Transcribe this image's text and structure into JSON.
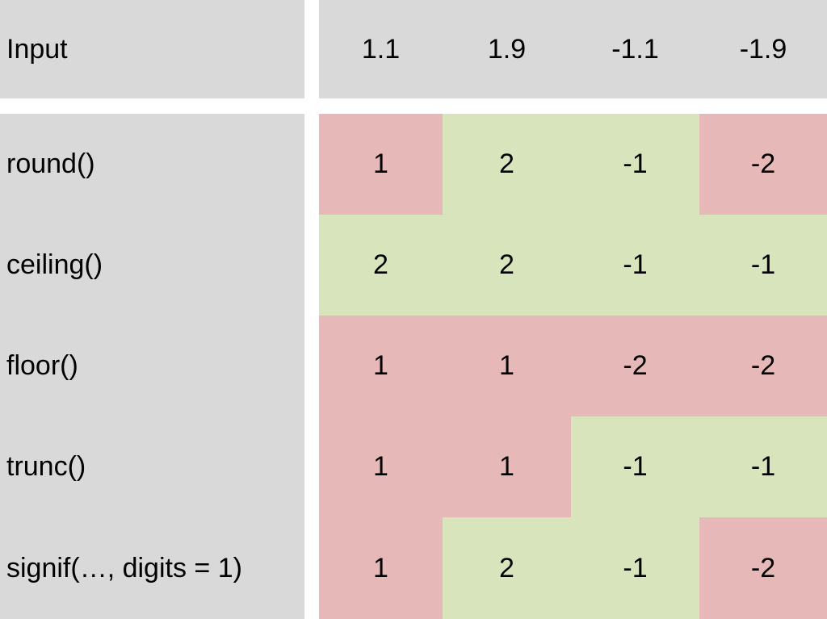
{
  "table": {
    "header": [
      "Input",
      "1.1",
      "1.9",
      "-1.1",
      "-1.9"
    ],
    "rows": [
      [
        "round()",
        "1",
        "2",
        "-1",
        "-2"
      ],
      [
        "ceiling()",
        "2",
        "2",
        "-1",
        "-1"
      ],
      [
        "floor()",
        "1",
        "1",
        "-2",
        "-2"
      ],
      [
        "trunc()",
        "1",
        "1",
        "-1",
        "-1"
      ],
      [
        "signif(…, digits = 1)",
        "1",
        "2",
        "-1",
        "-2"
      ]
    ],
    "header_color": "#d9d9d9",
    "label_color": "#d9d9d9",
    "cell_colors": [
      [
        "#e6b8b7",
        "#d8e4bc",
        "#d8e4bc",
        "#e6b8b7"
      ],
      [
        "#d8e4bc",
        "#d8e4bc",
        "#d8e4bc",
        "#d8e4bc"
      ],
      [
        "#e6b8b7",
        "#e6b8b7",
        "#e6b8b7",
        "#e6b8b7"
      ],
      [
        "#e6b8b7",
        "#e6b8b7",
        "#d8e4bc",
        "#d8e4bc"
      ],
      [
        "#e6b8b7",
        "#d8e4bc",
        "#d8e4bc",
        "#e6b8b7"
      ]
    ]
  }
}
